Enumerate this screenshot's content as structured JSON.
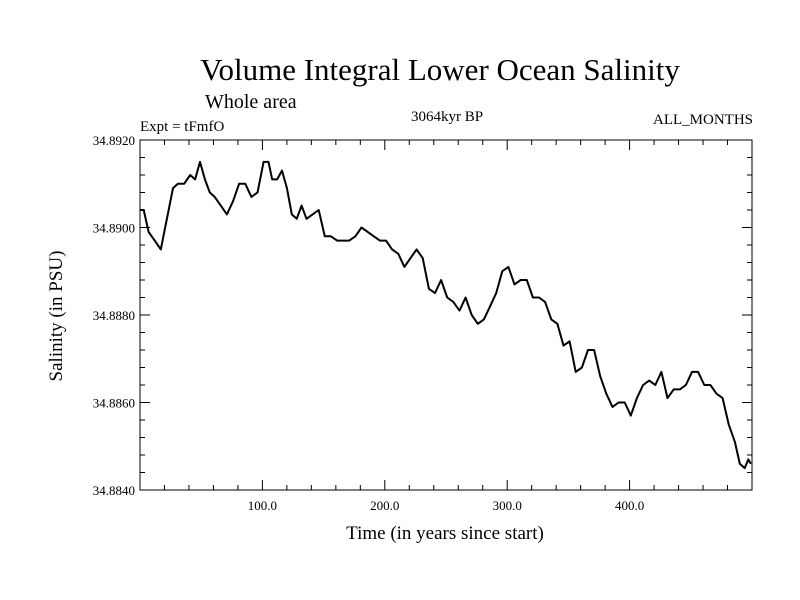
{
  "chart_data": {
    "type": "line",
    "title": "Volume Integral Lower Ocean Salinity",
    "subtitle": "Whole area",
    "experiment_label": "Expt = tFmfO",
    "period_label": "3064kyr BP",
    "months_label": "ALL_MONTHS",
    "xlabel": "Time (in years since start)",
    "ylabel": "Salinity (in PSU)",
    "xlim": [
      0,
      500
    ],
    "ylim": [
      34.884,
      34.892
    ],
    "x_ticks": [
      100,
      200,
      300,
      400
    ],
    "x_tick_labels": [
      "100.0",
      "200.0",
      "300.0",
      "400.0"
    ],
    "y_ticks": [
      34.884,
      34.886,
      34.888,
      34.89,
      34.892
    ],
    "y_tick_labels": [
      "34.8840",
      "34.8860",
      "34.8880",
      "34.8900",
      "34.8920"
    ],
    "grid": false,
    "series": [
      {
        "name": "Salinity",
        "color": "#000000",
        "x": [
          0,
          3,
          7,
          12,
          17,
          22,
          27,
          31,
          36,
          41,
          45,
          49,
          53,
          57,
          61,
          66,
          71,
          76,
          81,
          86,
          91,
          96,
          101,
          105,
          108,
          112,
          116,
          120,
          124,
          128,
          132,
          136,
          141,
          146,
          151,
          156,
          161,
          166,
          171,
          176,
          181,
          186,
          191,
          196,
          201,
          206,
          211,
          216,
          221,
          226,
          231,
          236,
          241,
          246,
          251,
          256,
          261,
          266,
          271,
          276,
          281,
          286,
          291,
          296,
          301,
          306,
          311,
          316,
          321,
          326,
          331,
          336,
          341,
          346,
          351,
          356,
          361,
          366,
          371,
          376,
          381,
          386,
          391,
          396,
          401,
          406,
          411,
          416,
          421,
          426,
          431,
          436,
          441,
          446,
          451,
          456,
          461,
          466,
          471,
          476,
          481,
          486,
          490,
          494,
          497,
          499
        ],
        "values": [
          34.8904,
          34.8904,
          34.8899,
          34.8897,
          34.8895,
          34.8902,
          34.8909,
          34.891,
          34.891,
          34.8912,
          34.8911,
          34.8915,
          34.8911,
          34.8908,
          34.8907,
          34.8905,
          34.8903,
          34.8906,
          34.891,
          34.891,
          34.8907,
          34.8908,
          34.8915,
          34.8915,
          34.8911,
          34.8911,
          34.8913,
          34.8909,
          34.8903,
          34.8902,
          34.8905,
          34.8902,
          34.8903,
          34.8904,
          34.8898,
          34.8898,
          34.8897,
          34.8897,
          34.8897,
          34.8898,
          34.89,
          34.8899,
          34.8898,
          34.8897,
          34.8897,
          34.8895,
          34.8894,
          34.8891,
          34.8893,
          34.8895,
          34.8893,
          34.8886,
          34.8885,
          34.8888,
          34.8884,
          34.8883,
          34.8881,
          34.8884,
          34.888,
          34.8878,
          34.8879,
          34.8882,
          34.8885,
          34.889,
          34.8891,
          34.8887,
          34.8888,
          34.8888,
          34.8884,
          34.8884,
          34.8883,
          34.8879,
          34.8878,
          34.8873,
          34.8874,
          34.8867,
          34.8868,
          34.8872,
          34.8872,
          34.8866,
          34.8862,
          34.8859,
          34.886,
          34.886,
          34.8857,
          34.8861,
          34.8864,
          34.8865,
          34.8864,
          34.8867,
          34.8861,
          34.8863,
          34.8863,
          34.8864,
          34.8867,
          34.8867,
          34.8864,
          34.8864,
          34.8862,
          34.8861,
          34.8855,
          34.8851,
          34.8846,
          34.8845,
          34.8847,
          34.8846
        ]
      }
    ]
  }
}
